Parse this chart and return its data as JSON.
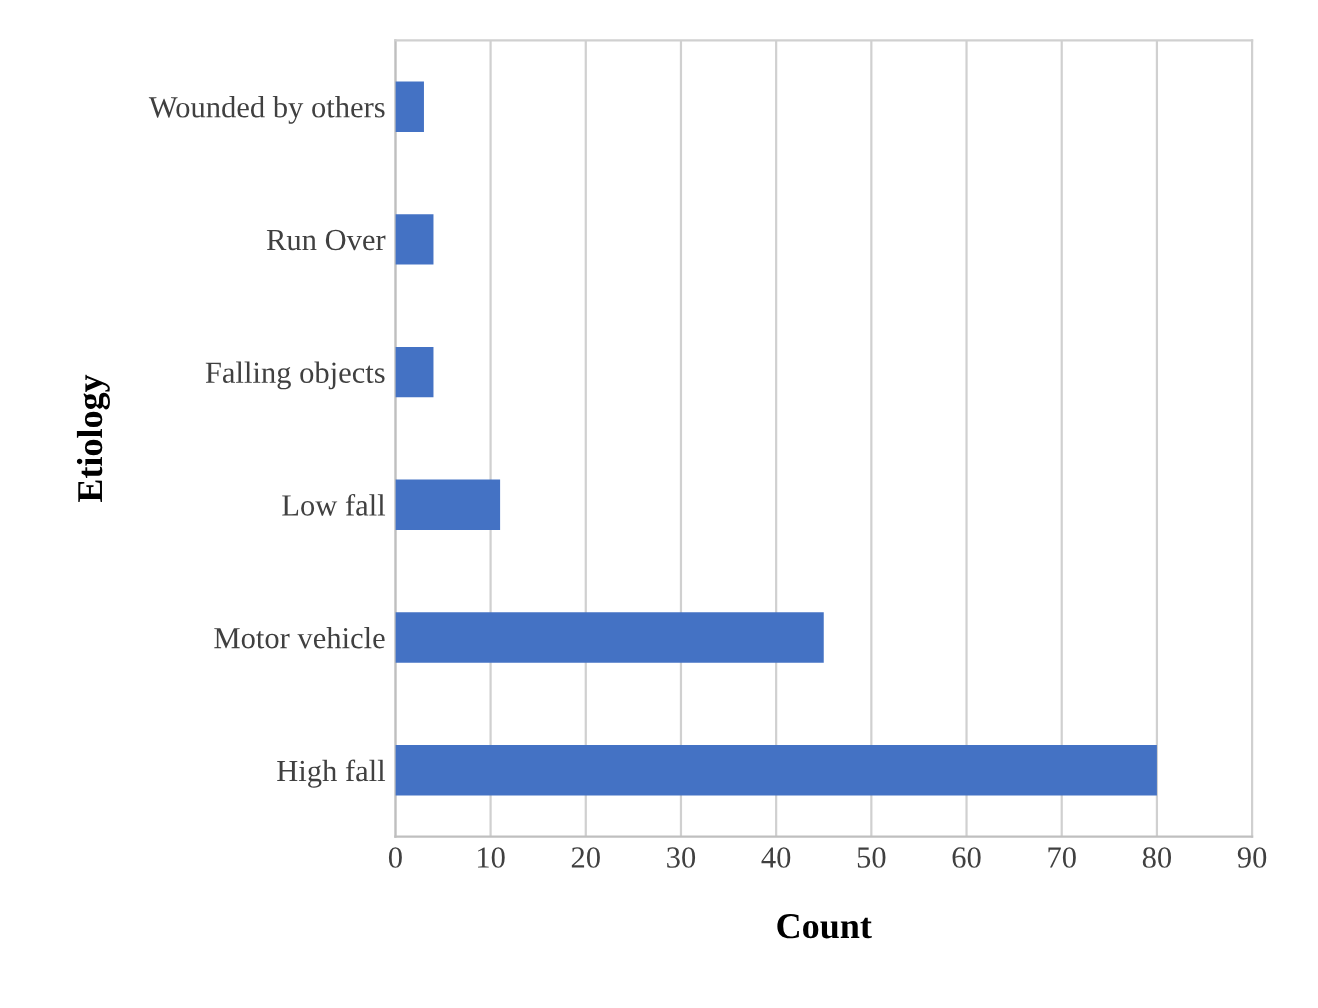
{
  "chart_data": {
    "type": "bar",
    "orientation": "horizontal",
    "xlabel": "Count",
    "ylabel": "Etiology",
    "categories": [
      "Wounded by others",
      "Run Over",
      "Falling objects",
      "Low fall",
      "Motor vehicle",
      "High fall"
    ],
    "values": [
      3,
      4,
      4,
      11,
      45,
      80
    ],
    "color": "#4472c4",
    "xlim": [
      0,
      90
    ],
    "xticks": [
      0,
      10,
      20,
      30,
      40,
      50,
      60,
      70,
      80,
      90
    ],
    "grid": "x"
  }
}
